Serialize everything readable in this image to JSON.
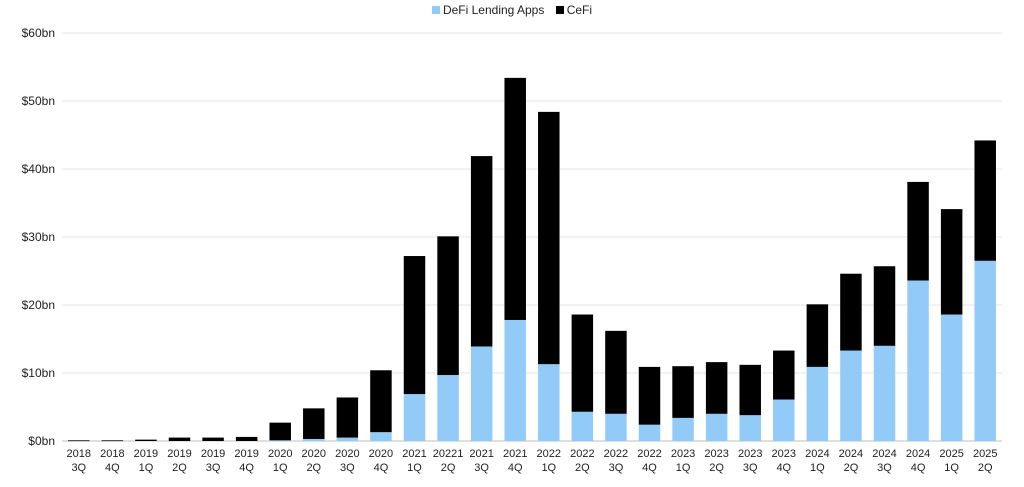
{
  "chart_data": {
    "type": "bar",
    "stacked": true,
    "legend_position": "top-center",
    "grid": true,
    "ylim": [
      0,
      60
    ],
    "y_ticks": [
      "$0bn",
      "$10bn",
      "$20bn",
      "$30bn",
      "$40bn",
      "$50bn",
      "$60bn"
    ],
    "categories": [
      [
        "2018",
        "3Q"
      ],
      [
        "2018",
        "4Q"
      ],
      [
        "2019",
        "1Q"
      ],
      [
        "2019",
        "2Q"
      ],
      [
        "2019",
        "3Q"
      ],
      [
        "2019",
        "4Q"
      ],
      [
        "2020",
        "1Q"
      ],
      [
        "2020",
        "2Q"
      ],
      [
        "2020",
        "3Q"
      ],
      [
        "2020",
        "4Q"
      ],
      [
        "2021",
        "1Q"
      ],
      [
        "20221",
        "2Q"
      ],
      [
        "2021",
        "3Q"
      ],
      [
        "2021",
        "4Q"
      ],
      [
        "2022",
        "1Q"
      ],
      [
        "2022",
        "2Q"
      ],
      [
        "2022",
        "3Q"
      ],
      [
        "2022",
        "4Q"
      ],
      [
        "2023",
        "1Q"
      ],
      [
        "2023",
        "2Q"
      ],
      [
        "2023",
        "3Q"
      ],
      [
        "2023",
        "4Q"
      ],
      [
        "2024",
        "1Q"
      ],
      [
        "2024",
        "2Q"
      ],
      [
        "2024",
        "3Q"
      ],
      [
        "2024",
        "4Q"
      ],
      [
        "2025",
        "1Q"
      ],
      [
        "2025",
        "2Q"
      ]
    ],
    "series": [
      {
        "name": "DeFi Lending Apps",
        "color": "#92cbf7",
        "values": [
          0,
          0,
          0,
          0,
          0,
          0,
          0.1,
          0.3,
          0.5,
          1.3,
          6.9,
          9.7,
          13.9,
          17.8,
          11.3,
          4.3,
          4.0,
          2.4,
          3.4,
          4.0,
          3.8,
          6.1,
          10.9,
          13.3,
          14.0,
          23.6,
          18.6,
          26.5
        ]
      },
      {
        "name": "CeFi",
        "color": "#000000",
        "values": [
          0.1,
          0.1,
          0.2,
          0.5,
          0.5,
          0.6,
          2.6,
          4.5,
          5.9,
          9.1,
          20.3,
          20.4,
          28.0,
          35.6,
          37.1,
          14.3,
          12.2,
          8.5,
          7.6,
          7.6,
          7.4,
          7.2,
          9.2,
          11.3,
          11.7,
          14.5,
          15.5,
          17.7
        ]
      }
    ]
  }
}
